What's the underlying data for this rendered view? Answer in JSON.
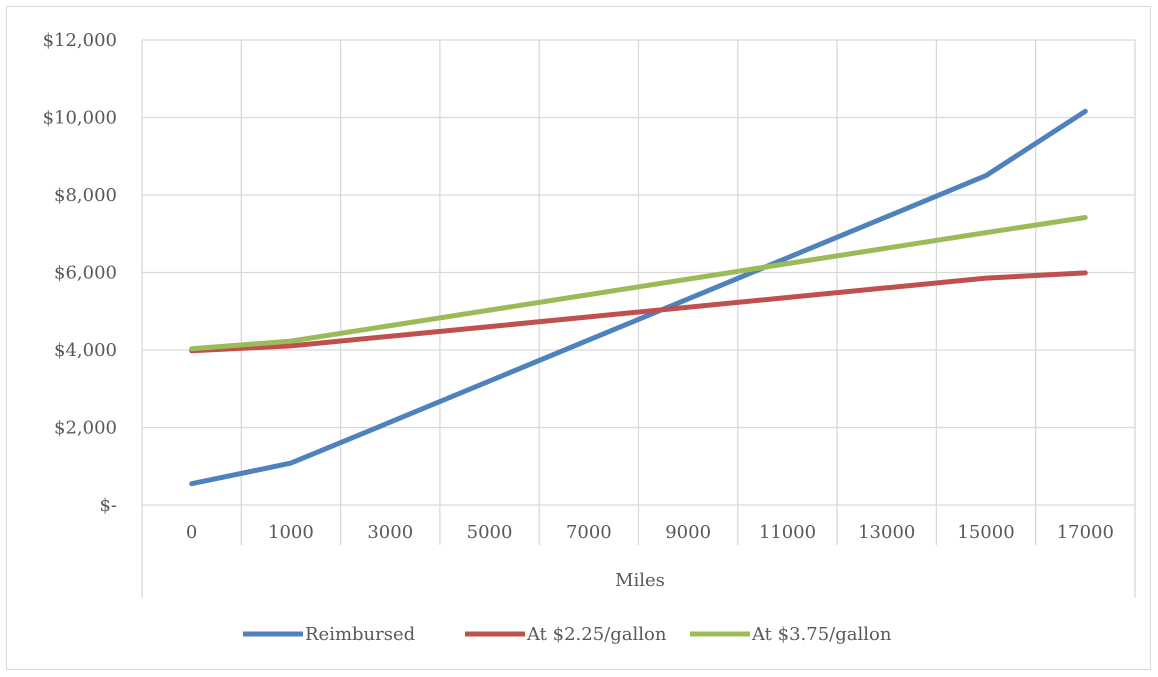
{
  "chart_data": {
    "type": "line",
    "title": "",
    "xlabel": "Miles",
    "ylabel": "",
    "x": [
      0,
      1000,
      3000,
      5000,
      7000,
      9000,
      11000,
      13000,
      15000,
      17000
    ],
    "x_tick_labels": [
      "0",
      "1000",
      "3000",
      "5000",
      "7000",
      "9000",
      "11000",
      "13000",
      "15000",
      "17000"
    ],
    "y_ticks": [
      0,
      2000,
      4000,
      6000,
      8000,
      10000,
      12000
    ],
    "y_tick_labels": [
      "$-",
      "$2,000",
      "$4,000",
      "$6,000",
      "$8,000",
      "$10,000",
      "$12,000"
    ],
    "ylim": [
      0,
      12000
    ],
    "grid": true,
    "legend_position": "bottom",
    "series": [
      {
        "name": "Reimbursed",
        "color": "#4f81bd",
        "values": [
          550,
          1080,
          2140,
          3200,
          4260,
          5320,
          6380,
          7440,
          8500,
          10160
        ]
      },
      {
        "name": "At $2.25/gallon",
        "color": "#c0504d",
        "values": [
          3980,
          4105,
          4355,
          4605,
          4855,
          5105,
          5355,
          5605,
          5855,
          5990
        ]
      },
      {
        "name": "At $3.75/gallon",
        "color": "#9bbb59",
        "values": [
          4030,
          4230,
          4630,
          5030,
          5430,
          5830,
          6230,
          6630,
          7030,
          7420
        ]
      }
    ]
  }
}
